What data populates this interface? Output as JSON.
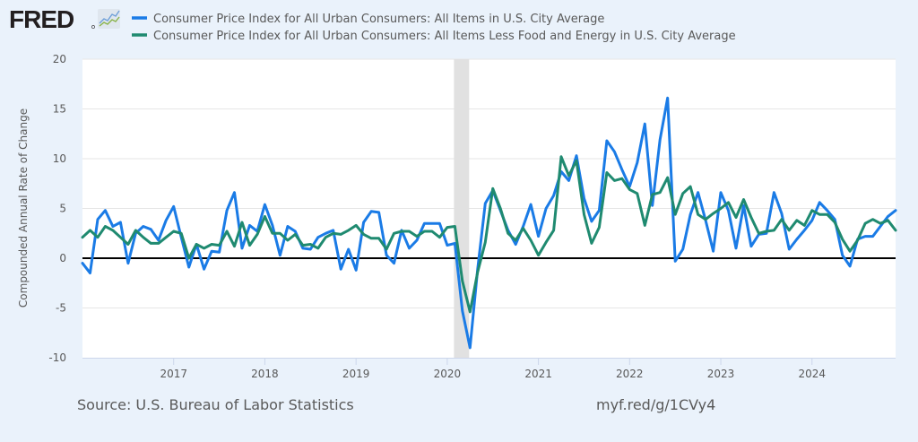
{
  "header": {
    "logo_text": "FRED",
    "logo_icon": "sparkline-chart-icon"
  },
  "colors": {
    "background": "#eaf2fb",
    "plot_background": "#ffffff",
    "series_all_items": "#1a7be6",
    "series_core": "#1f8a70",
    "recession": "#e1e1e1",
    "zero_line": "#000000",
    "gridline": "#e6e6e6",
    "text": "#595959"
  },
  "footer": {
    "source": "Source: U.S. Bureau of Labor Statistics",
    "link": "myf.red/g/1CVy4"
  },
  "chart_data": {
    "type": "line",
    "title": "",
    "xlabel": "",
    "ylabel": "Compounded Annual Rate of Change",
    "ylim": [
      -10,
      20
    ],
    "yticks": [
      "20",
      "15",
      "10",
      "5",
      "0",
      "-5",
      "-10"
    ],
    "ytick_values": [
      20,
      15,
      10,
      5,
      0,
      -5,
      -10
    ],
    "xticks": [
      "2017",
      "2018",
      "2019",
      "2020",
      "2021",
      "2022",
      "2023",
      "2024"
    ],
    "xtick_month_index": [
      12,
      24,
      36,
      48,
      60,
      72,
      84,
      96
    ],
    "x_start": "2016-01",
    "x_end": "2024-12",
    "frequency": "monthly",
    "grid": true,
    "legend_position": "top",
    "recession": {
      "start_month_index": 49,
      "end_month_index": 51
    },
    "series": [
      {
        "name": "Consumer Price Index for All Urban Consumers: All Items in U.S. City Average",
        "color": "#1a7be6",
        "values": [
          -0.5,
          -1.5,
          3.9,
          4.8,
          3.2,
          3.6,
          -0.5,
          2.5,
          3.2,
          2.9,
          1.8,
          3.8,
          5.2,
          2.1,
          -0.9,
          1.4,
          -1.1,
          0.7,
          0.6,
          4.8,
          6.6,
          1.0,
          3.3,
          2.7,
          5.4,
          3.3,
          0.3,
          3.2,
          2.7,
          1.0,
          0.9,
          2.1,
          2.5,
          2.8,
          -1.1,
          0.9,
          -1.2,
          3.6,
          4.7,
          4.6,
          0.3,
          -0.5,
          2.8,
          1.0,
          1.8,
          3.5,
          3.5,
          3.5,
          1.3,
          1.5,
          -5.3,
          -9.0,
          -1.1,
          5.5,
          6.8,
          4.8,
          2.8,
          1.4,
          3.2,
          5.4,
          2.2,
          5.0,
          6.3,
          8.7,
          7.8,
          10.3,
          6.0,
          3.7,
          4.8,
          11.8,
          10.7,
          8.9,
          7.2,
          9.6,
          13.5,
          5.3,
          11.9,
          16.1,
          -0.3,
          0.9,
          4.4,
          6.6,
          3.8,
          0.7,
          6.6,
          4.8,
          1.0,
          5.3,
          1.2,
          2.4,
          2.5,
          6.6,
          4.5,
          0.9,
          1.9,
          2.8,
          3.8,
          5.6,
          4.8,
          3.9,
          0.3,
          -0.8,
          1.9,
          2.2,
          2.2,
          3.2,
          4.2,
          4.8
        ]
      },
      {
        "name": "Consumer Price Index for All Urban Consumers: All Items Less Food and Energy in U.S. City Average",
        "color": "#1f8a70",
        "values": [
          2.1,
          2.8,
          2.1,
          3.2,
          2.8,
          2.1,
          1.4,
          2.8,
          2.1,
          1.5,
          1.5,
          2.1,
          2.7,
          2.5,
          0.0,
          1.4,
          1.0,
          1.4,
          1.3,
          2.7,
          1.2,
          3.6,
          1.3,
          2.4,
          4.2,
          2.5,
          2.5,
          1.8,
          2.4,
          1.3,
          1.4,
          1.0,
          2.1,
          2.5,
          2.4,
          2.8,
          3.3,
          2.4,
          2.0,
          2.0,
          0.9,
          2.5,
          2.7,
          2.7,
          2.2,
          2.7,
          2.7,
          2.1,
          3.1,
          3.2,
          -2.3,
          -5.4,
          -1.4,
          1.6,
          7.0,
          5.0,
          2.5,
          1.8,
          3.0,
          1.8,
          0.3,
          1.6,
          2.8,
          10.2,
          8.3,
          9.8,
          4.4,
          1.5,
          3.1,
          8.6,
          7.8,
          8.0,
          6.9,
          6.5,
          3.3,
          6.4,
          6.6,
          8.1,
          4.4,
          6.5,
          7.2,
          4.4,
          3.9,
          4.5,
          5.0,
          5.6,
          4.1,
          5.9,
          4.1,
          2.5,
          2.7,
          2.8,
          3.9,
          2.8,
          3.8,
          3.3,
          4.8,
          4.4,
          4.4,
          3.6,
          1.9,
          0.7,
          1.8,
          3.5,
          3.9,
          3.5,
          3.8,
          2.8
        ]
      }
    ]
  }
}
